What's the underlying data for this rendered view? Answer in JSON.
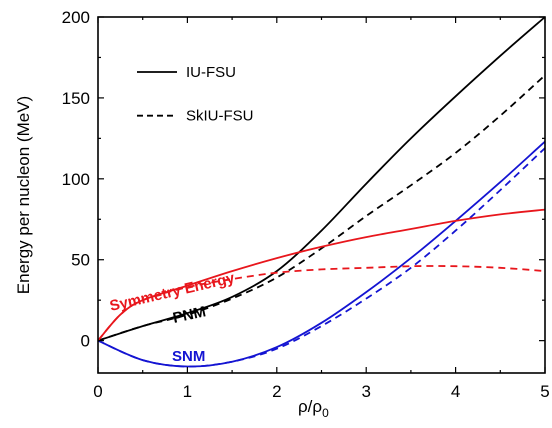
{
  "chart_data": {
    "type": "line",
    "xlabel": "ρ/ρ",
    "xlabel_sub": "0",
    "ylabel": "Energy per nucleon (MeV)",
    "xlim": [
      0,
      5
    ],
    "ylim": [
      -20,
      200
    ],
    "x_ticks": [
      0,
      1,
      2,
      3,
      4,
      5
    ],
    "y_ticks": [
      0,
      50,
      100,
      150,
      200
    ],
    "x_tick_labels": [
      "0",
      "1",
      "2",
      "3",
      "4",
      "5"
    ],
    "y_tick_labels": [
      "0",
      "50",
      "100",
      "150",
      "200"
    ],
    "grid": false,
    "legend_position": "top-left",
    "legend": [
      {
        "label": "IU-FSU",
        "style": "solid"
      },
      {
        "label": "SkIU-FSU",
        "style": "dashed"
      }
    ],
    "annotations": [
      {
        "text": "Symmetry Energy",
        "color": "#e8161c"
      },
      {
        "text": "PNM",
        "color": "#000000"
      },
      {
        "text": "SNM",
        "color": "#1414d2"
      }
    ],
    "series": [
      {
        "group": "PNM",
        "model": "IU-FSU",
        "color": "#000000",
        "dash": "solid",
        "x": [
          0,
          0.5,
          1,
          1.5,
          2,
          2.5,
          3,
          3.5,
          4,
          4.5,
          5
        ],
        "y": [
          0,
          9,
          17,
          27,
          43,
          68,
          97,
          125,
          151,
          176,
          200
        ]
      },
      {
        "group": "PNM",
        "model": "SkIU-FSU",
        "color": "#000000",
        "dash": "dashed",
        "x": [
          0,
          0.5,
          1,
          1.5,
          2,
          2.5,
          3,
          3.5,
          4,
          4.5,
          5
        ],
        "y": [
          0,
          9,
          16,
          26,
          39,
          57,
          77,
          96,
          116,
          139,
          164
        ]
      },
      {
        "group": "SNM",
        "model": "IU-FSU",
        "color": "#1414d2",
        "dash": "solid",
        "x": [
          0,
          0.5,
          1,
          1.5,
          2,
          2.5,
          3,
          3.5,
          4,
          4.5,
          5
        ],
        "y": [
          0,
          -12,
          -16,
          -13,
          -4,
          11,
          30,
          51,
          74,
          98,
          123
        ]
      },
      {
        "group": "SNM",
        "model": "SkIU-FSU",
        "color": "#1414d2",
        "dash": "dashed",
        "x": [
          0,
          0.5,
          1,
          1.5,
          2,
          2.5,
          3,
          3.5,
          4,
          4.5,
          5
        ],
        "y": [
          0,
          -12,
          -16,
          -13,
          -5,
          9,
          26,
          45,
          68,
          93,
          119
        ]
      },
      {
        "group": "Symmetry Energy",
        "model": "IU-FSU",
        "color": "#e8161c",
        "dash": "solid",
        "x": [
          0,
          0.25,
          0.5,
          1,
          1.5,
          2,
          2.5,
          3,
          3.5,
          4,
          4.5,
          5
        ],
        "y": [
          0,
          16,
          25,
          34,
          43,
          51,
          58,
          64,
          69,
          74,
          78,
          81
        ]
      },
      {
        "group": "Symmetry Energy",
        "model": "SkIU-FSU",
        "color": "#e8161c",
        "dash": "dashed",
        "x": [
          0,
          0.25,
          0.5,
          1,
          1.5,
          2,
          2.5,
          3,
          3.5,
          4,
          4.5,
          5
        ],
        "y": [
          0,
          16,
          25,
          33,
          38,
          42,
          44,
          45,
          46,
          46,
          45,
          43
        ]
      }
    ]
  }
}
